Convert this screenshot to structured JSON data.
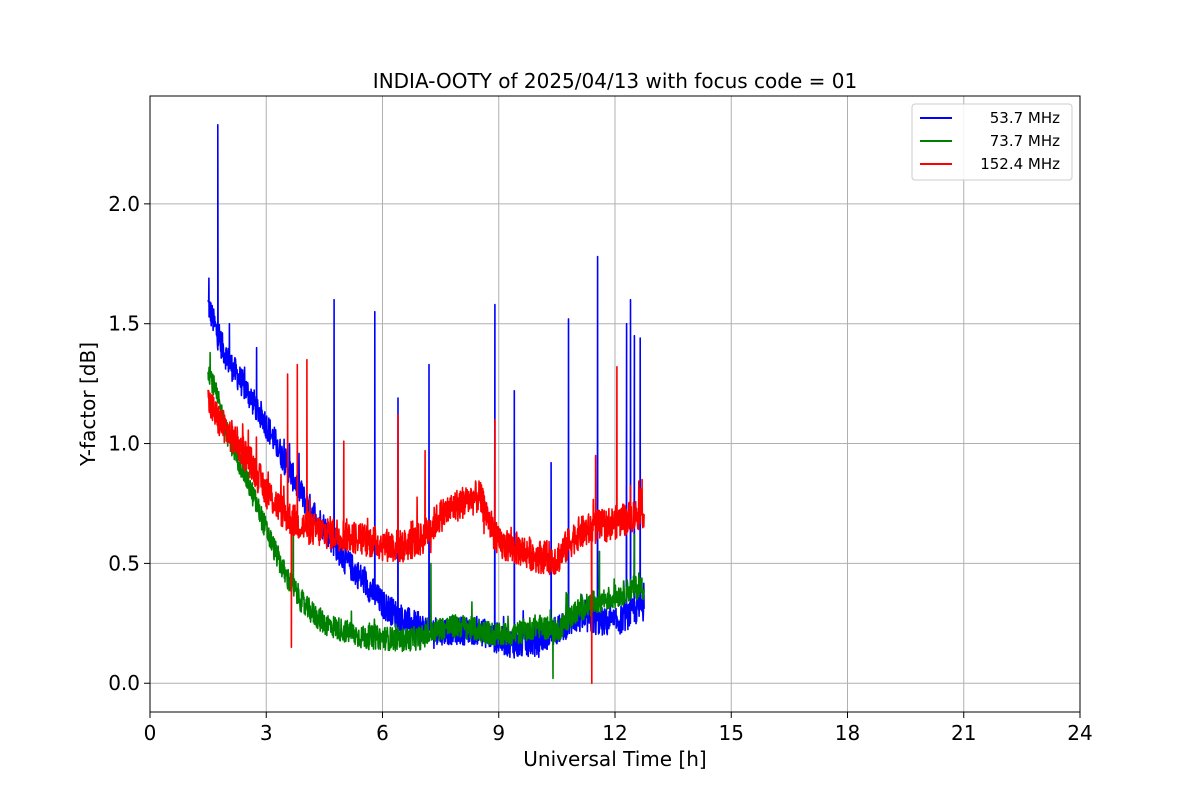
{
  "chart_data": {
    "type": "line",
    "title": "INDIA-OOTY of 2025/04/13 with focus code = 01",
    "xlabel": "Universal Time [h]",
    "ylabel": "Y-factor [dB]",
    "xlim": [
      0,
      24
    ],
    "ylim": [
      -0.12,
      2.45
    ],
    "xticks": [
      0,
      3,
      6,
      9,
      12,
      15,
      18,
      21,
      24
    ],
    "yticks": [
      0.0,
      0.5,
      1.0,
      1.5,
      2.0
    ],
    "xtick_labels": [
      "0",
      "3",
      "6",
      "9",
      "12",
      "15",
      "18",
      "21",
      "24"
    ],
    "ytick_labels": [
      "0.0",
      "0.5",
      "1.0",
      "1.5",
      "2.0"
    ],
    "grid": true,
    "legend_position": "top-right",
    "series": [
      {
        "name": "53.7 MHz",
        "color": "#0000ff",
        "x": [
          1.5,
          1.75,
          2.0,
          2.5,
          3.0,
          3.5,
          4.0,
          4.5,
          5.0,
          5.5,
          6.0,
          6.5,
          7.0,
          7.5,
          8.0,
          8.5,
          9.0,
          9.5,
          10.0,
          10.5,
          11.0,
          11.5,
          12.0,
          12.5,
          12.75
        ],
        "y": [
          1.58,
          1.45,
          1.35,
          1.22,
          1.08,
          0.92,
          0.76,
          0.65,
          0.52,
          0.43,
          0.33,
          0.27,
          0.23,
          0.22,
          0.22,
          0.22,
          0.18,
          0.16,
          0.18,
          0.22,
          0.27,
          0.26,
          0.25,
          0.3,
          0.32
        ],
        "noise": 0.06,
        "spikes": [
          [
            1.52,
            1.69
          ],
          [
            1.75,
            2.33
          ],
          [
            2.05,
            1.5
          ],
          [
            2.75,
            1.4
          ],
          [
            3.6,
            1.0
          ],
          [
            4.75,
            1.6
          ],
          [
            5.8,
            1.55
          ],
          [
            6.4,
            1.19
          ],
          [
            7.2,
            1.33
          ],
          [
            8.9,
            1.58
          ],
          [
            9.4,
            1.22
          ],
          [
            10.35,
            0.92
          ],
          [
            10.8,
            1.52
          ],
          [
            11.55,
            1.78
          ],
          [
            12.3,
            1.5
          ],
          [
            12.4,
            1.6
          ],
          [
            12.5,
            1.45
          ],
          [
            12.65,
            1.44
          ]
        ]
      },
      {
        "name": "73.7 MHz",
        "color": "#008000",
        "x": [
          1.5,
          1.75,
          2.0,
          2.5,
          3.0,
          3.5,
          4.0,
          4.5,
          5.0,
          5.5,
          6.0,
          6.5,
          7.0,
          7.5,
          8.0,
          8.5,
          9.0,
          9.5,
          10.0,
          10.5,
          11.0,
          11.5,
          12.0,
          12.5,
          12.75
        ],
        "y": [
          1.32,
          1.18,
          1.04,
          0.85,
          0.64,
          0.45,
          0.32,
          0.25,
          0.22,
          0.19,
          0.19,
          0.18,
          0.19,
          0.23,
          0.24,
          0.22,
          0.2,
          0.21,
          0.24,
          0.22,
          0.3,
          0.34,
          0.36,
          0.4,
          0.4
        ],
        "noise": 0.05,
        "spikes": [
          [
            1.55,
            1.38
          ],
          [
            2.0,
            1.05
          ],
          [
            3.7,
            0.62
          ],
          [
            7.25,
            0.5
          ],
          [
            10.4,
            0.02
          ],
          [
            11.6,
            0.55
          ],
          [
            12.5,
            0.62
          ]
        ]
      },
      {
        "name": "152.4 MHz",
        "color": "#ff0000",
        "x": [
          1.5,
          1.75,
          2.0,
          2.5,
          3.0,
          3.5,
          4.0,
          4.5,
          5.0,
          5.5,
          6.0,
          6.5,
          7.0,
          7.5,
          8.0,
          8.5,
          9.0,
          9.5,
          10.0,
          10.5,
          11.0,
          11.5,
          12.0,
          12.5,
          12.75
        ],
        "y": [
          1.18,
          1.1,
          1.05,
          0.95,
          0.8,
          0.7,
          0.65,
          0.63,
          0.62,
          0.6,
          0.58,
          0.57,
          0.6,
          0.7,
          0.75,
          0.78,
          0.58,
          0.56,
          0.53,
          0.52,
          0.62,
          0.65,
          0.67,
          0.7,
          0.72
        ],
        "noise": 0.07,
        "spikes": [
          [
            3.55,
            1.29
          ],
          [
            3.65,
            0.15
          ],
          [
            3.8,
            1.33
          ],
          [
            4.05,
            1.35
          ],
          [
            5.0,
            1.01
          ],
          [
            6.4,
            1.12
          ],
          [
            7.1,
            0.97
          ],
          [
            8.9,
            1.1
          ],
          [
            11.4,
            0.0
          ],
          [
            11.5,
            0.95
          ],
          [
            12.05,
            1.32
          ],
          [
            12.7,
            0.85
          ]
        ]
      }
    ]
  }
}
